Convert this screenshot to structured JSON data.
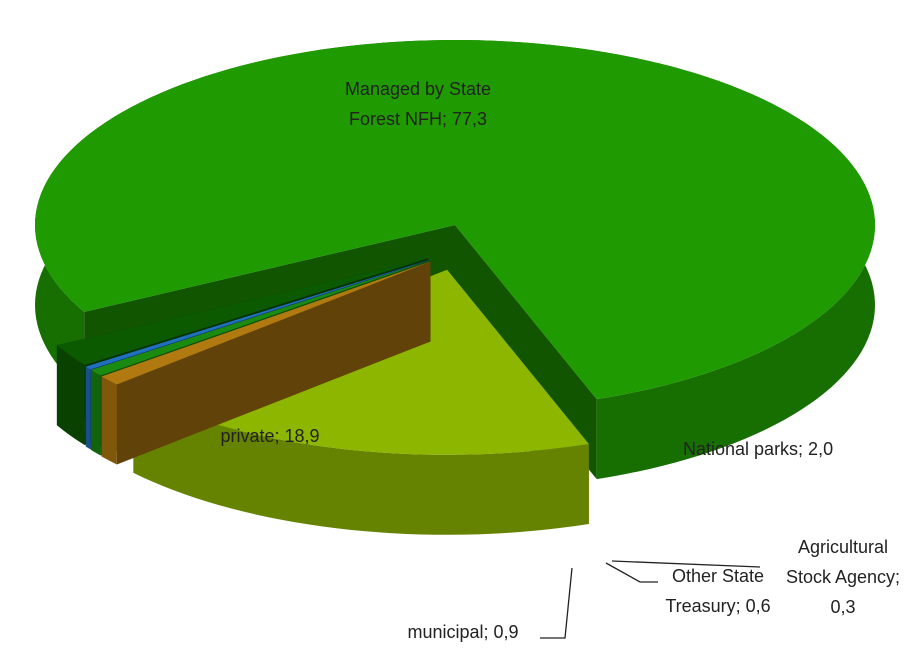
{
  "chart_data": {
    "type": "pie3d",
    "categories": [
      "Managed by State Forest NFH",
      "private",
      "municipal",
      "Other State Treasury",
      "Agricultural Stock Agency",
      "National parks"
    ],
    "values": [
      77.3,
      18.9,
      0.9,
      0.6,
      0.3,
      2.0
    ],
    "value_labels": [
      [
        "Managed by State",
        "Forest NFH; 77,3"
      ],
      [
        "private; 18,9"
      ],
      [
        "municipal; 0,9"
      ],
      [
        "Other State",
        "Treasury; 0,6"
      ],
      [
        "Agricultural",
        "Stock Agency;",
        "0,3"
      ],
      [
        "National parks; 2,0"
      ]
    ],
    "colors": [
      "#1f9a00",
      "#8db600",
      "#b07a10",
      "#1a8a10",
      "#2070c0",
      "#0b5a00"
    ]
  }
}
